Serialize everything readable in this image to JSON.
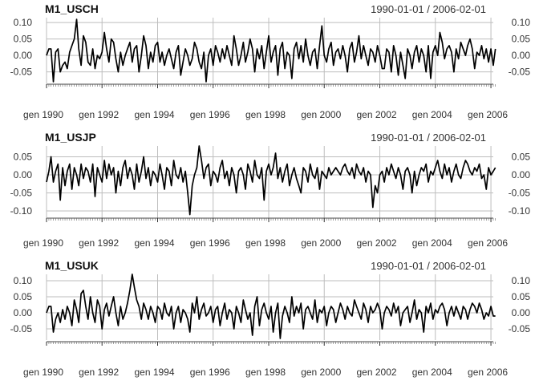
{
  "chart_data": [
    {
      "type": "line",
      "title": "M1_USCH",
      "range_label": "1990-01-01 / 2006-02-01",
      "x_start": "1990-01-01",
      "x_end": "2006-02-01",
      "ylim": [
        -0.085,
        0.115
      ],
      "yticks": [
        -0.05,
        0.0,
        0.05,
        0.1
      ],
      "ytick_labels": [
        "-0.05",
        "0.00",
        "0.05",
        "0.10"
      ],
      "xtick_labels": [
        "gen 1990",
        "gen 1992",
        "gen 1994",
        "gen 1996",
        "gen 1998",
        "gen 2000",
        "gen 2002",
        "gen 2004",
        "gen 2006"
      ],
      "xticks": [
        "1990-01-01",
        "1992-01-01",
        "1994-01-01",
        "1996-01-01",
        "1998-01-01",
        "2000-01-01",
        "2002-01-01",
        "2004-01-01",
        "2006-01-01"
      ],
      "grid": true,
      "color": "#000000",
      "series": [
        {
          "values": [
            0.0,
            0.02,
            0.02,
            -0.08,
            0.01,
            0.02,
            -0.05,
            -0.03,
            -0.02,
            -0.04,
            0.01,
            0.03,
            0.05,
            0.11,
            0.02,
            -0.03,
            0.06,
            0.04,
            -0.02,
            -0.03,
            0.02,
            -0.04,
            0.0,
            -0.01,
            0.01,
            0.07,
            0.02,
            -0.02,
            0.05,
            0.04,
            -0.01,
            -0.05,
            0.01,
            -0.03,
            0.0,
            0.02,
            0.04,
            -0.02,
            0.02,
            0.03,
            -0.05,
            0.0,
            0.06,
            0.03,
            -0.04,
            0.01,
            -0.02,
            0.03,
            0.04,
            -0.02,
            0.01,
            -0.03,
            0.0,
            0.02,
            -0.01,
            -0.04,
            0.01,
            0.03,
            -0.06,
            -0.02,
            0.02,
            0.0,
            -0.03,
            -0.01,
            0.04,
            0.02,
            -0.02,
            -0.04,
            0.01,
            -0.08,
            0.0,
            0.02,
            -0.03,
            0.03,
            0.01,
            -0.02,
            0.02,
            -0.01,
            0.03,
            0.0,
            -0.03,
            0.06,
            0.02,
            -0.03,
            0.0,
            0.04,
            -0.02,
            0.01,
            0.05,
            0.02,
            -0.05,
            0.02,
            -0.01,
            0.03,
            -0.04,
            0.01,
            0.06,
            -0.02,
            0.01,
            0.03,
            -0.06,
            0.02,
            0.04,
            -0.04,
            0.01,
            0.0,
            -0.07,
            0.02,
            0.04,
            -0.01,
            0.03,
            -0.02,
            0.05,
            0.0,
            -0.03,
            0.01,
            0.02,
            -0.04,
            0.03,
            0.09,
            0.0,
            -0.02,
            0.02,
            0.04,
            -0.03,
            0.01,
            0.02,
            -0.01,
            0.03,
            0.0,
            -0.05,
            0.02,
            0.04,
            -0.02,
            0.01,
            0.06,
            -0.01,
            0.03,
            0.0,
            -0.03,
            0.02,
            0.01,
            -0.02,
            0.03,
            0.0,
            -0.04,
            -0.04,
            0.02,
            0.01,
            -0.05,
            0.03,
            0.0,
            -0.06,
            0.01,
            -0.03,
            -0.07,
            0.02,
            0.0,
            -0.04,
            0.01,
            0.03,
            -0.02,
            0.02,
            0.0,
            -0.05,
            0.03,
            -0.07,
            0.01,
            0.03,
            0.0,
            0.07,
            0.04,
            -0.01,
            0.02,
            0.03,
            0.01,
            -0.05,
            0.02,
            -0.01,
            0.04,
            0.02,
            0.0,
            0.03,
            0.05,
            0.02,
            -0.04,
            0.01,
            0.0,
            0.03,
            -0.01,
            0.02,
            -0.02,
            0.02,
            -0.03,
            0.02
          ]
        }
      ]
    },
    {
      "type": "line",
      "title": "M1_USJP",
      "range_label": "1990-01-01 / 2006-02-01",
      "x_start": "1990-01-01",
      "x_end": "2006-02-01",
      "ylim": [
        -0.12,
        0.08
      ],
      "yticks": [
        -0.1,
        -0.05,
        0.0,
        0.05
      ],
      "ytick_labels": [
        "-0.10",
        "-0.05",
        "0.00",
        "0.05"
      ],
      "xtick_labels": [
        "gen 1990",
        "gen 1992",
        "gen 1994",
        "gen 1996",
        "gen 1998",
        "gen 2000",
        "gen 2002",
        "gen 2004",
        "gen 2006"
      ],
      "xticks": [
        "1990-01-01",
        "1992-01-01",
        "1994-01-01",
        "1996-01-01",
        "1998-01-01",
        "2000-01-01",
        "2002-01-01",
        "2004-01-01",
        "2006-01-01"
      ],
      "grid": true,
      "color": "#000000",
      "series": [
        {
          "values": [
            -0.02,
            0.01,
            0.05,
            -0.02,
            0.01,
            0.03,
            -0.07,
            0.02,
            -0.03,
            0.01,
            0.03,
            -0.04,
            0.02,
            0.0,
            -0.03,
            0.03,
            -0.01,
            0.02,
            0.01,
            -0.02,
            0.03,
            -0.06,
            0.02,
            0.0,
            -0.02,
            0.04,
            -0.01,
            0.03,
            0.0,
            0.02,
            -0.05,
            0.01,
            -0.03,
            0.02,
            0.04,
            -0.01,
            0.02,
            0.0,
            -0.04,
            0.03,
            -0.02,
            0.01,
            0.05,
            -0.01,
            0.02,
            -0.03,
            0.01,
            0.0,
            -0.02,
            0.03,
            0.0,
            -0.04,
            0.02,
            0.01,
            -0.03,
            0.04,
            0.0,
            -0.01,
            0.02,
            -0.02,
            0.01,
            -0.05,
            -0.11,
            -0.03,
            0.0,
            0.02,
            0.08,
            0.04,
            -0.01,
            0.02,
            0.03,
            -0.03,
            0.01,
            0.0,
            -0.02,
            0.02,
            0.04,
            -0.01,
            0.01,
            -0.03,
            0.02,
            0.0,
            -0.05,
            0.01,
            0.02,
            0.0,
            -0.04,
            0.03,
            0.01,
            -0.02,
            0.04,
            0.0,
            -0.01,
            0.02,
            -0.07,
            0.01,
            0.03,
            0.0,
            0.02,
            0.06,
            -0.01,
            0.02,
            -0.02,
            0.01,
            0.03,
            -0.03,
            0.0,
            0.02,
            -0.01,
            -0.03,
            -0.05,
            0.02,
            0.01,
            -0.02,
            0.03,
            0.0,
            -0.01,
            0.02,
            -0.04,
            0.01,
            0.0,
            -0.01,
            0.02,
            0.0,
            0.01,
            0.02,
            0.01,
            0.0,
            0.02,
            0.03,
            0.01,
            0.0,
            0.02,
            -0.01,
            0.03,
            0.01,
            0.0,
            0.02,
            -0.02,
            0.01,
            0.0,
            -0.09,
            -0.03,
            -0.05,
            0.0,
            0.01,
            -0.02,
            0.02,
            0.0,
            0.03,
            0.01,
            -0.01,
            0.02,
            0.0,
            -0.04,
            0.01,
            0.02,
            0.0,
            -0.05,
            0.01,
            -0.03,
            0.0,
            0.02,
            0.01,
            0.03,
            -0.02,
            0.01,
            0.0,
            0.02,
            0.04,
            0.01,
            -0.01,
            0.03,
            0.0,
            0.02,
            -0.02,
            0.01,
            0.03,
            0.0,
            -0.01,
            0.02,
            0.04,
            0.03,
            0.01,
            0.0,
            0.02,
            0.01,
            0.03,
            -0.01,
            0.0,
            -0.04,
            0.02,
            0.0,
            0.01,
            0.02
          ]
        }
      ]
    },
    {
      "type": "line",
      "title": "M1_USUK",
      "range_label": "1990-01-01 / 2006-02-01",
      "x_start": "1990-01-01",
      "x_end": "2006-02-01",
      "ylim": [
        -0.085,
        0.12
      ],
      "yticks": [
        -0.05,
        0.0,
        0.05,
        0.1
      ],
      "ytick_labels": [
        "-0.05",
        "0.00",
        "0.05",
        "0.10"
      ],
      "xtick_labels": [
        "gen 1990",
        "gen 1992",
        "gen 1994",
        "gen 1996",
        "gen 1998",
        "gen 2000",
        "gen 2002",
        "gen 2004",
        "gen 2006"
      ],
      "xticks": [
        "1990-01-01",
        "1992-01-01",
        "1994-01-01",
        "1996-01-01",
        "1998-01-01",
        "2000-01-01",
        "2002-01-01",
        "2004-01-01",
        "2006-01-01"
      ],
      "grid": true,
      "color": "#000000",
      "series": [
        {
          "values": [
            0.0,
            0.02,
            0.02,
            -0.06,
            -0.02,
            0.0,
            -0.03,
            0.01,
            -0.02,
            0.02,
            0.0,
            -0.04,
            0.04,
            0.01,
            -0.03,
            0.06,
            0.07,
            0.02,
            -0.02,
            0.05,
            0.0,
            -0.03,
            0.04,
            0.02,
            -0.05,
            0.01,
            0.03,
            -0.01,
            0.02,
            0.05,
            0.0,
            -0.04,
            0.02,
            -0.02,
            0.0,
            0.03,
            0.07,
            0.12,
            0.08,
            0.04,
            0.02,
            -0.02,
            0.03,
            0.01,
            -0.02,
            0.02,
            0.0,
            -0.03,
            0.02,
            0.01,
            -0.02,
            0.03,
            0.0,
            -0.01,
            0.02,
            -0.05,
            0.0,
            0.02,
            -0.03,
            0.01,
            0.0,
            -0.02,
            -0.06,
            0.03,
            0.0,
            0.05,
            -0.02,
            0.01,
            0.03,
            -0.01,
            0.0,
            0.02,
            -0.03,
            0.01,
            0.02,
            -0.04,
            0.0,
            0.03,
            -0.02,
            0.01,
            0.0,
            -0.05,
            0.02,
            0.0,
            -0.03,
            0.04,
            0.01,
            -0.02,
            0.0,
            -0.07,
            0.02,
            0.05,
            -0.04,
            0.01,
            0.03,
            0.0,
            -0.02,
            0.02,
            -0.06,
            0.0,
            0.03,
            -0.08,
            -0.01,
            0.02,
            0.0,
            -0.03,
            0.05,
            -0.01,
            0.02,
            0.0,
            0.03,
            -0.05,
            0.01,
            0.02,
            0.0,
            -0.02,
            0.04,
            -0.03,
            0.01,
            0.0,
            0.02,
            -0.04,
            0.0,
            0.02,
            0.01,
            -0.03,
            0.0,
            0.03,
            0.01,
            -0.02,
            0.02,
            0.0,
            -0.01,
            0.04,
            0.02,
            0.0,
            -0.02,
            0.03,
            0.01,
            -0.03,
            0.02,
            0.0,
            0.01,
            0.03,
            0.01,
            -0.05,
            0.0,
            0.02,
            0.01,
            -0.01,
            0.03,
            0.0,
            0.02,
            -0.04,
            0.0,
            0.01,
            0.02,
            -0.03,
            0.0,
            0.04,
            -0.02,
            0.01,
            0.0,
            -0.06,
            0.02,
            0.0,
            0.03,
            -0.02,
            0.01,
            0.0,
            0.02,
            0.03,
            0.01,
            -0.04,
            0.0,
            0.02,
            -0.01,
            0.02,
            0.0,
            -0.02,
            0.02,
            0.01,
            -0.02,
            0.01,
            0.03,
            0.02,
            0.0,
            0.03,
            0.01,
            -0.02,
            0.0,
            -0.01,
            0.02,
            -0.01,
            -0.01
          ]
        }
      ]
    }
  ]
}
